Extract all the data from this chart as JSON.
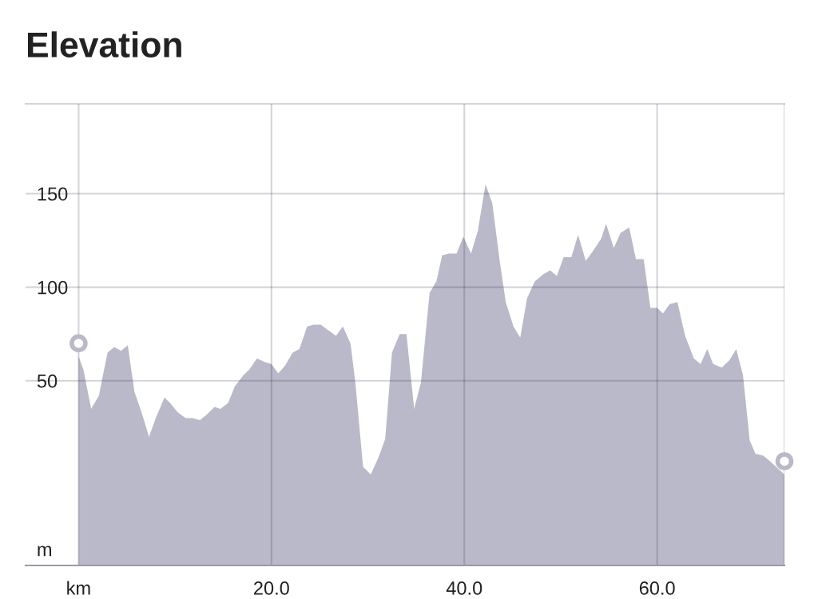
{
  "chart_data": {
    "type": "area",
    "title": "Elevation",
    "xlim": [
      -5.5,
      73.2
    ],
    "ylim": [
      -48.7,
      198
    ],
    "xticks": [
      {
        "value": 0,
        "label": "km"
      },
      {
        "value": 20,
        "label": "20.0"
      },
      {
        "value": 40,
        "label": "40.0"
      },
      {
        "value": 60,
        "label": "60.0"
      },
      {
        "value": 73.2,
        "label": null
      }
    ],
    "yticks": [
      {
        "value": -40,
        "label": "m"
      },
      50,
      100,
      150
    ],
    "grid": true,
    "legend": false,
    "bands": [
      {
        "axis": "y",
        "from": -48.7,
        "to": 0,
        "color": "#b9b9c9"
      }
    ],
    "series": [
      {
        "color": "#b9b9c9",
        "x": [
          0,
          0.5,
          1.3,
          2.1,
          3.0,
          3.7,
          4.4,
          5.1,
          5.8,
          6.6,
          7.3,
          8.0,
          8.9,
          9.5,
          10.3,
          11.1,
          11.8,
          12.6,
          13.3,
          14.1,
          14.7,
          15.5,
          16.2,
          17.1,
          17.7,
          18.5,
          19.3,
          20.0,
          20.7,
          21.4,
          22.2,
          22.9,
          23.7,
          24.4,
          25.1,
          25.9,
          26.7,
          27.4,
          28.2,
          28.7,
          29.5,
          30.3,
          31.1,
          31.8,
          32.5,
          33.3,
          34.0,
          34.8,
          35.5,
          36.4,
          37.1,
          37.7,
          38.4,
          39.2,
          39.9,
          40.7,
          41.4,
          42.2,
          42.9,
          43.7,
          44.3,
          45.1,
          45.8,
          46.5,
          47.3,
          48.2,
          48.9,
          49.6,
          50.3,
          51.1,
          51.8,
          52.6,
          53.3,
          54.2,
          54.7,
          55.5,
          56.2,
          57.1,
          57.8,
          58.6,
          59.3,
          60.0,
          60.6,
          61.3,
          62.1,
          62.9,
          63.8,
          64.5,
          65.2,
          65.8,
          66.7,
          67.5,
          68.2,
          68.9,
          69.6,
          70.2,
          71.0,
          71.7,
          73.2
        ],
        "values": [
          63,
          56,
          35,
          42,
          65,
          68,
          66,
          69,
          44,
          32,
          20,
          30,
          41,
          38,
          33,
          30,
          30,
          29,
          32,
          36,
          35,
          38,
          47,
          53,
          56,
          62,
          60,
          59,
          54,
          58,
          65,
          67,
          79,
          80,
          80,
          77,
          74,
          79,
          70,
          49,
          4,
          0,
          9,
          19,
          65,
          75,
          75,
          35,
          49,
          97,
          103,
          117,
          118,
          118,
          127,
          118,
          130,
          155,
          145,
          113,
          92,
          79,
          73,
          94,
          103,
          107,
          109,
          106,
          116,
          116,
          128,
          114,
          119,
          126,
          134,
          121,
          129,
          132,
          115,
          115,
          89,
          89,
          86,
          91,
          92,
          74,
          62,
          59,
          67,
          59,
          57,
          61,
          67,
          53,
          18,
          11,
          10,
          7,
          0
        ]
      },
      {
        "type": "scatter",
        "color": "#b9b9c9",
        "marker": "circle",
        "x": [
          0,
          73.2
        ],
        "values": [
          70,
          7
        ]
      }
    ]
  }
}
